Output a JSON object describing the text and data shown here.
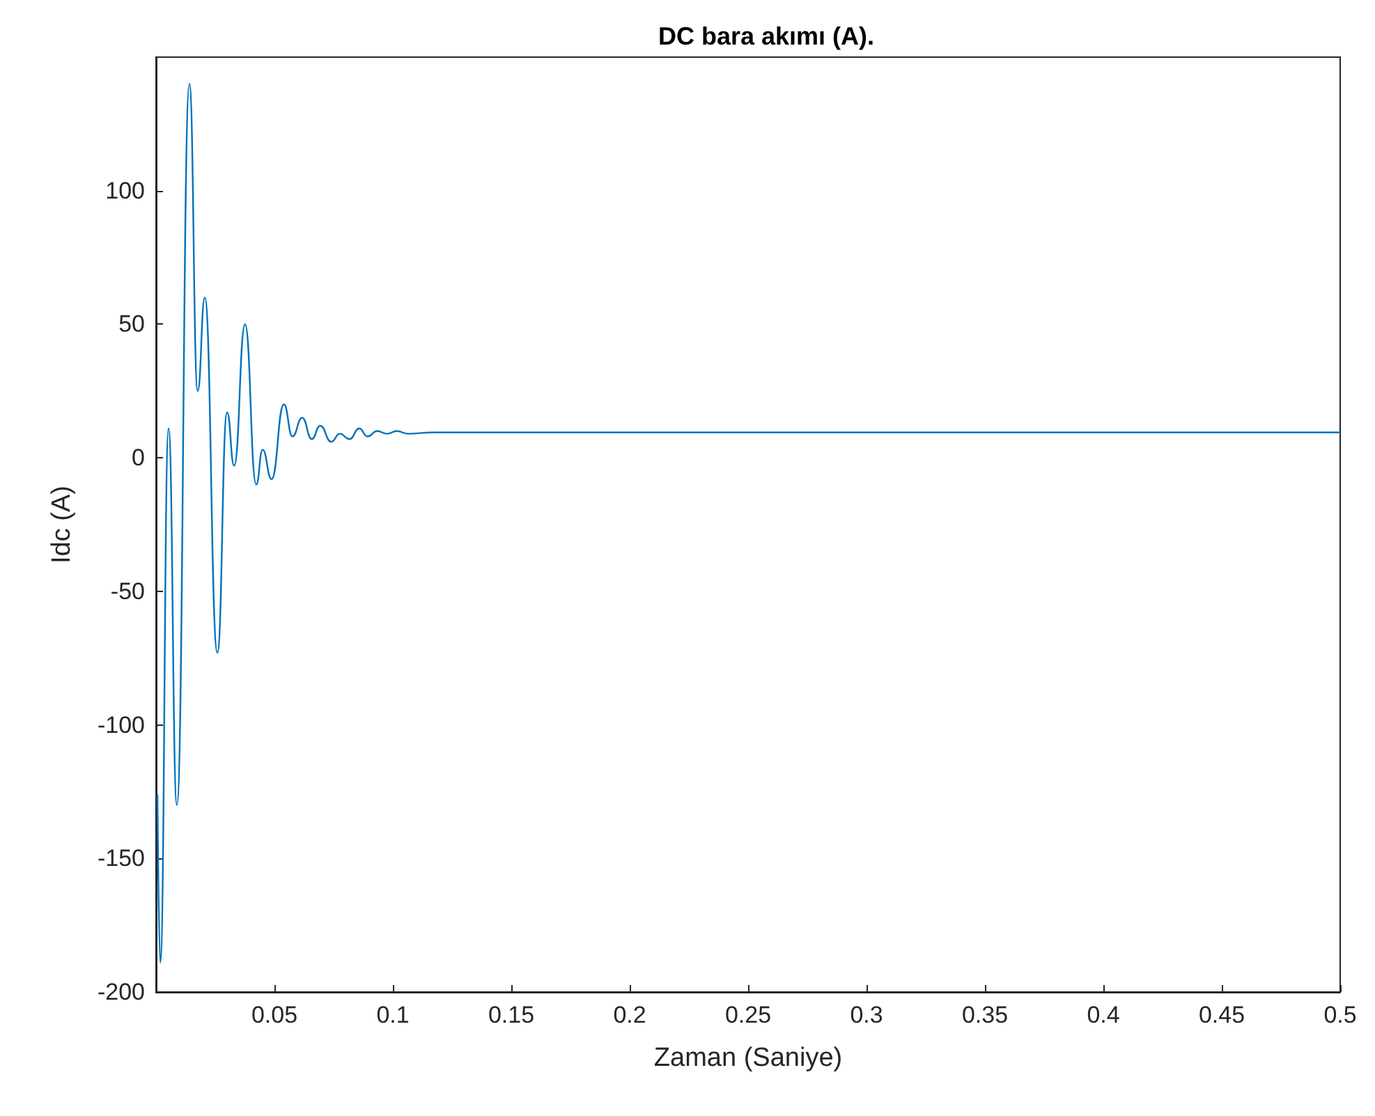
{
  "chart_data": {
    "type": "line",
    "title": "DC bara akımı (A).",
    "xlabel": "Zaman (Saniye)",
    "ylabel": "Idc (A)",
    "xlim": [
      0,
      0.5
    ],
    "xticks": [
      0.05,
      0.1,
      0.15,
      0.2,
      0.25,
      0.3,
      0.35,
      0.4,
      0.45,
      0.5
    ],
    "ylim": [
      -200,
      150
    ],
    "yticks": [
      -200,
      -150,
      -100,
      -50,
      0,
      50,
      100
    ],
    "grid": false,
    "series": [
      {
        "color": "#0072bd",
        "x": [
          0.0006,
          0.0018,
          0.0053,
          0.0088,
          0.0141,
          0.0176,
          0.0206,
          0.0259,
          0.03,
          0.033,
          0.0376,
          0.0423,
          0.045,
          0.0488,
          0.054,
          0.0576,
          0.0617,
          0.0658,
          0.0693,
          0.074,
          0.0776,
          0.0817,
          0.0858,
          0.0893,
          0.0934,
          0.0975,
          0.1017,
          0.1064,
          0.117,
          0.15,
          0.3,
          0.5
        ],
        "values": [
          -126,
          -189,
          11,
          -130,
          140,
          25,
          60,
          -73,
          17,
          -3,
          50,
          -10,
          3,
          -8,
          20,
          8,
          15,
          7,
          12,
          6,
          9,
          7,
          11,
          8,
          10,
          9,
          10,
          9,
          9.5,
          9.5,
          9.5,
          9.5
        ]
      }
    ]
  }
}
